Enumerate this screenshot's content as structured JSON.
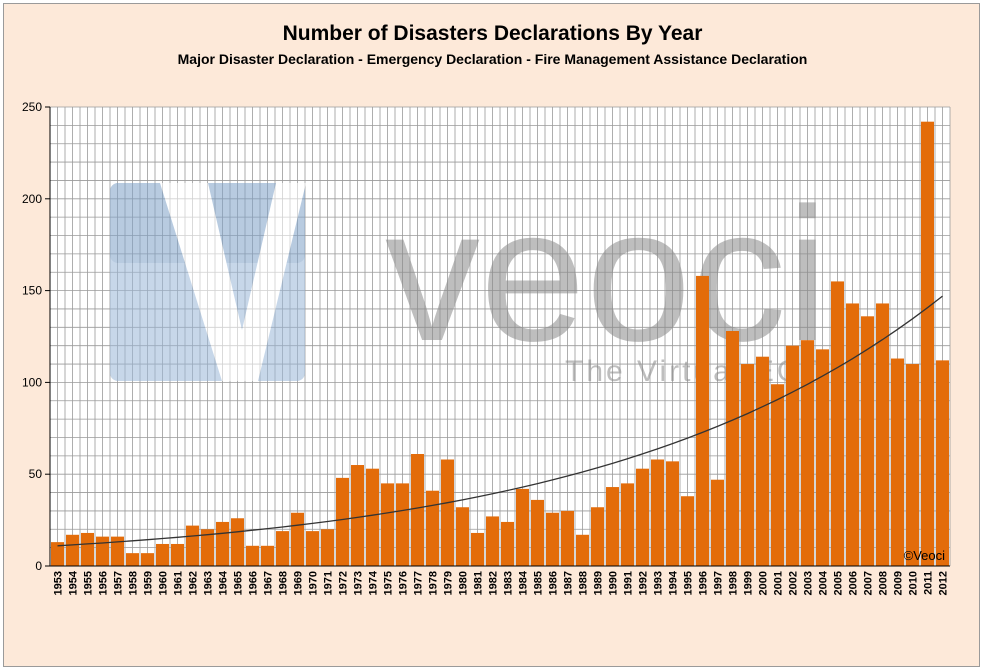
{
  "chart_data": {
    "type": "bar",
    "title": "Number of Disasters Declarations By Year",
    "subtitle": "Major Disaster Declaration - Emergency Declaration - Fire Management Assistance Declaration",
    "xlabel": "",
    "ylabel": "",
    "ylim": [
      0,
      250
    ],
    "yticks": [
      0,
      50,
      100,
      150,
      200,
      250
    ],
    "grid": true,
    "legend": "none",
    "bar_color": "#e36c0a",
    "categories": [
      "1953",
      "1954",
      "1955",
      "1956",
      "1957",
      "1958",
      "1959",
      "1960",
      "1961",
      "1962",
      "1963",
      "1964",
      "1965",
      "1966",
      "1967",
      "1968",
      "1969",
      "1970",
      "1971",
      "1972",
      "1973",
      "1974",
      "1975",
      "1976",
      "1977",
      "1978",
      "1979",
      "1980",
      "1981",
      "1982",
      "1983",
      "1984",
      "1985",
      "1986",
      "1987",
      "1988",
      "1989",
      "1990",
      "1991",
      "1992",
      "1993",
      "1994",
      "1995",
      "1996",
      "1997",
      "1998",
      "1999",
      "2000",
      "2001",
      "2002",
      "2003",
      "2004",
      "2005",
      "2006",
      "2007",
      "2008",
      "2009",
      "2010",
      "2011",
      "2012"
    ],
    "values": [
      13,
      17,
      18,
      16,
      16,
      7,
      7,
      12,
      12,
      22,
      20,
      24,
      26,
      11,
      11,
      19,
      29,
      19,
      20,
      48,
      55,
      53,
      45,
      45,
      61,
      41,
      58,
      32,
      18,
      27,
      24,
      42,
      36,
      29,
      30,
      17,
      32,
      43,
      45,
      53,
      58,
      57,
      38,
      158,
      47,
      128,
      110,
      114,
      99,
      120,
      123,
      118,
      155,
      143,
      136,
      143,
      113,
      110,
      242,
      112
    ],
    "trendline": {
      "type": "exponential",
      "start": 11,
      "end": 147
    },
    "watermark": {
      "logo_text": "veoci",
      "tagline": "The Virtual EOC"
    },
    "credit": "©Veoci"
  }
}
